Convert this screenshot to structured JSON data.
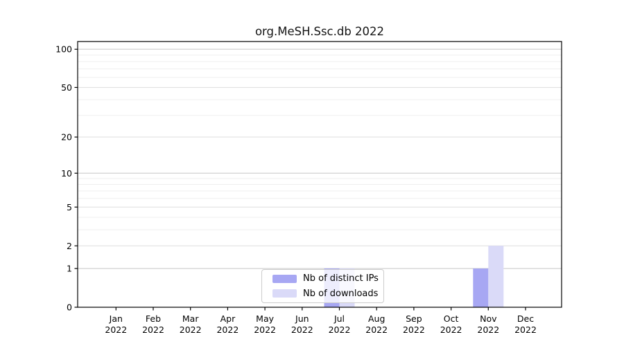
{
  "page": {
    "background": "#ffffff"
  },
  "chart_data": {
    "type": "bar",
    "title": "org.MeSH.Ssc.db 2022",
    "categories": [
      "Jan 2022",
      "Feb 2022",
      "Mar 2022",
      "Apr 2022",
      "May 2022",
      "Jun 2022",
      "Jul 2022",
      "Aug 2022",
      "Sep 2022",
      "Oct 2022",
      "Nov 2022",
      "Dec 2022"
    ],
    "series": [
      {
        "name": "Nb of distinct IPs",
        "color": "#a7a7f3",
        "values": [
          0,
          0,
          0,
          0,
          0,
          0,
          1,
          0,
          0,
          0,
          1,
          0
        ]
      },
      {
        "name": "Nb of downloads",
        "color": "#dadaf8",
        "values": [
          0,
          0,
          0,
          0,
          0,
          0,
          1,
          0,
          0,
          0,
          2,
          0
        ]
      }
    ],
    "xlabel": "",
    "ylabel": "",
    "yscale": "log1p",
    "ylim": [
      0,
      115
    ],
    "yticks_labeled": [
      100,
      50,
      20,
      10,
      5,
      2,
      1,
      0
    ],
    "yticks_emphasis": [
      1,
      10,
      100
    ],
    "yticks_minor": [
      3,
      4,
      6,
      7,
      8,
      9,
      30,
      40,
      60,
      70,
      80,
      90
    ],
    "grid": "horizontal",
    "legend_position": "bottom-center"
  },
  "colors": {
    "axis": "#000000",
    "emphasis_grid": "#c6c6c6",
    "labeled_grid": "#dedede",
    "minor_grid": "#efefef",
    "legend_border": "#cccccc"
  }
}
